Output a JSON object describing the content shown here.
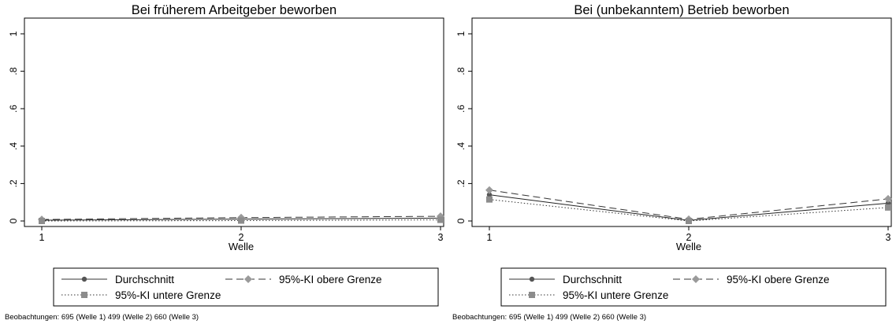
{
  "chart_data": [
    {
      "type": "line",
      "title": "Bei früherem Arbeitgeber beworben",
      "xlabel": "Welle",
      "ylabel": "",
      "x": [
        1,
        2,
        3
      ],
      "xticks": [
        "1",
        "2",
        "3"
      ],
      "xlim": [
        1,
        3
      ],
      "ylim": [
        0,
        1
      ],
      "yticks": [
        "0",
        ".2",
        ".4",
        ".6",
        ".8",
        "1"
      ],
      "grid": false,
      "legend_position": "bottom",
      "series": [
        {
          "name": "Durchschnitt",
          "values": [
            0.004,
            0.01,
            0.015
          ],
          "style": "solid",
          "marker": "circle",
          "color": "#555555"
        },
        {
          "name": "95%-KI obere Grenze",
          "values": [
            0.008,
            0.018,
            0.025
          ],
          "style": "dashed",
          "marker": "diamond",
          "color": "#9a9a9a"
        },
        {
          "name": "95%-KI untere Grenze",
          "values": [
            0.0,
            0.002,
            0.006
          ],
          "style": "dotted",
          "marker": "square",
          "color": "#8c8c8c"
        }
      ],
      "note": "Beobachtungen: 695 (Welle 1) 499 (Welle 2) 660 (Welle 3)"
    },
    {
      "type": "line",
      "title": "Bei (unbekanntem) Betrieb beworben",
      "xlabel": "Welle",
      "ylabel": "",
      "x": [
        1,
        2,
        3
      ],
      "xticks": [
        "1",
        "2",
        "3"
      ],
      "xlim": [
        1,
        3
      ],
      "ylim": [
        0,
        1
      ],
      "yticks": [
        "0",
        ".2",
        ".4",
        ".6",
        ".8",
        "1"
      ],
      "grid": false,
      "legend_position": "bottom",
      "series": [
        {
          "name": "Durchschnitt",
          "values": [
            0.14,
            0.003,
            0.095
          ],
          "style": "solid",
          "marker": "circle",
          "color": "#555555"
        },
        {
          "name": "95%-KI obere Grenze",
          "values": [
            0.165,
            0.009,
            0.118
          ],
          "style": "dashed",
          "marker": "diamond",
          "color": "#9a9a9a"
        },
        {
          "name": "95%-KI untere Grenze",
          "values": [
            0.115,
            0.0,
            0.072
          ],
          "style": "dotted",
          "marker": "square",
          "color": "#8c8c8c"
        }
      ],
      "note": "Beobachtungen: 695 (Welle 1) 499 (Welle 2) 660 (Welle 3)"
    }
  ]
}
